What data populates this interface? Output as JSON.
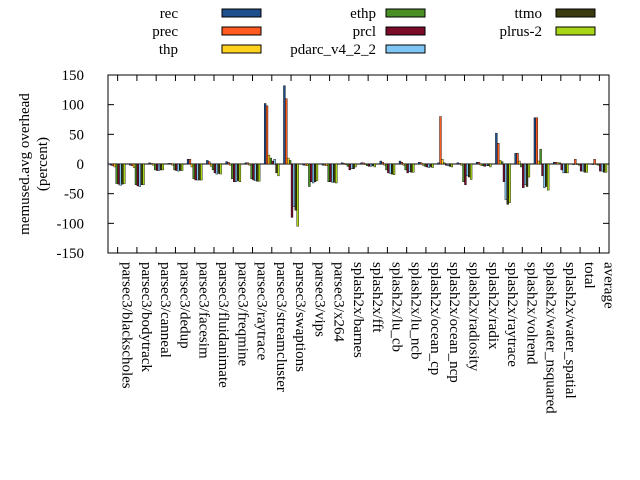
{
  "chart_data": {
    "type": "bar",
    "title": "",
    "xlabel": "",
    "ylabel_lines": [
      "memused.avg overhead",
      "(percent)"
    ],
    "ylim": [
      -150,
      150
    ],
    "yticks": [
      -150,
      -100,
      -50,
      0,
      50,
      100,
      150
    ],
    "grid": false,
    "legend_position": "top",
    "categories": [
      "parsec3/blackscholes",
      "parsec3/bodytrack",
      "parsec3/canneal",
      "parsec3/dedup",
      "parsec3/facesim",
      "parsec3/fluidanimate",
      "parsec3/freqmine",
      "parsec3/raytrace",
      "parsec3/streamcluster",
      "parsec3/swaptions",
      "parsec3/vips",
      "parsec3/x264",
      "splash2x/barnes",
      "splash2x/fft",
      "splash2x/lu_cb",
      "splash2x/lu_ncb",
      "splash2x/ocean_cp",
      "splash2x/ocean_ncp",
      "splash2x/radiosity",
      "splash2x/radix",
      "splash2x/raytrace",
      "splash2x/volrend",
      "splash2x/water_nsquared",
      "splash2x/water_spatial",
      "total",
      "average"
    ],
    "series": [
      {
        "name": "rec",
        "color": "#1f4e8c",
        "values": [
          -2,
          -2,
          2,
          1,
          8,
          6,
          4,
          2,
          102,
          132,
          -2,
          -2,
          2,
          2,
          5,
          5,
          3,
          2,
          2,
          3,
          52,
          18,
          78,
          3,
          0,
          0
        ]
      },
      {
        "name": "prec",
        "color": "#ff5a1f",
        "values": [
          -3,
          -3,
          1,
          1,
          8,
          4,
          3,
          2,
          98,
          110,
          -2,
          -2,
          1,
          2,
          3,
          3,
          2,
          80,
          1,
          3,
          35,
          18,
          78,
          3,
          8,
          8
        ]
      },
      {
        "name": "thp",
        "color": "#ffd21f",
        "values": [
          -5,
          -6,
          -2,
          -2,
          -5,
          -4,
          -2,
          -2,
          15,
          10,
          -3,
          -3,
          0,
          -1,
          -2,
          -2,
          -2,
          8,
          -2,
          -2,
          6,
          5,
          5,
          2,
          0,
          0
        ]
      },
      {
        "name": "ethp",
        "color": "#4a8f23",
        "values": [
          -33,
          -35,
          -10,
          -10,
          -25,
          -10,
          -25,
          -25,
          10,
          6,
          -38,
          -30,
          -4,
          -3,
          -10,
          -10,
          -4,
          2,
          -30,
          -3,
          4,
          -5,
          25,
          2,
          -2,
          -2
        ]
      },
      {
        "name": "prcl",
        "color": "#7a0c2a",
        "values": [
          -34,
          -37,
          -11,
          -11,
          -27,
          -15,
          -30,
          -27,
          5,
          -90,
          -30,
          -30,
          -10,
          -4,
          -15,
          -15,
          -5,
          -2,
          -35,
          -4,
          -30,
          -40,
          -20,
          -10,
          -12,
          -12
        ]
      },
      {
        "name": "pdarc_v4_2_2",
        "color": "#7fc6f5",
        "values": [
          -36,
          -38,
          -11,
          -12,
          -27,
          -17,
          -30,
          -28,
          8,
          -72,
          -32,
          -31,
          -8,
          -4,
          -16,
          -13,
          -6,
          -3,
          -20,
          -3,
          -60,
          -35,
          -40,
          -15,
          -12,
          -12
        ]
      },
      {
        "name": "ttmo",
        "color": "#3a3a10",
        "values": [
          -34,
          -35,
          -10,
          -11,
          -27,
          -16,
          -28,
          -29,
          -15,
          -78,
          -30,
          -31,
          -8,
          -3,
          -17,
          -14,
          -5,
          -4,
          -22,
          -3,
          -68,
          -38,
          -38,
          -15,
          -14,
          -14
        ]
      },
      {
        "name": "plrus-2",
        "color": "#a8d616",
        "values": [
          -33,
          -35,
          -10,
          -11,
          -27,
          -17,
          -30,
          -29,
          -20,
          -105,
          -28,
          -32,
          -5,
          -5,
          -18,
          -14,
          -6,
          -5,
          -26,
          -5,
          -65,
          -22,
          -44,
          -15,
          -14,
          -14
        ]
      }
    ]
  }
}
